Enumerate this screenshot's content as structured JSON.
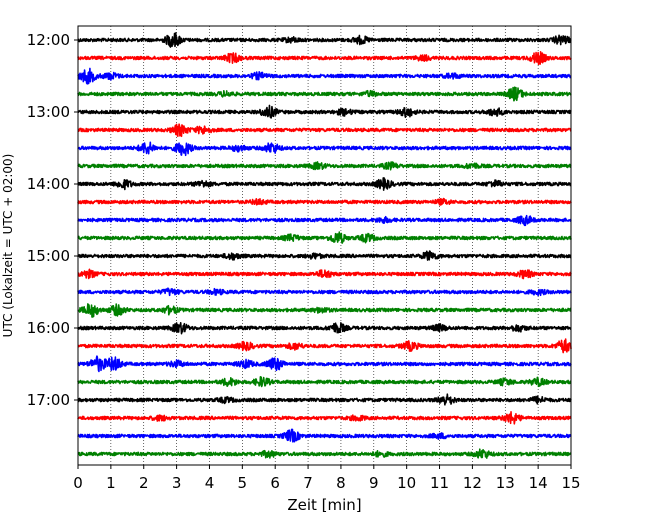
{
  "chart_data": {
    "type": "line",
    "title": "",
    "xlabel": "Zeit  [min]",
    "ylabel": "UTC (Lokalzeit = UTC + 02:00)",
    "xlim": [
      0,
      15
    ],
    "x_ticks": [
      "0",
      "1",
      "2",
      "3",
      "4",
      "5",
      "6",
      "7",
      "8",
      "9",
      "10",
      "11",
      "12",
      "13",
      "14",
      "15"
    ],
    "y_tick_labels": [
      {
        "row": 0,
        "label": "12:00"
      },
      {
        "row": 4,
        "label": "13:00"
      },
      {
        "row": 8,
        "label": "14:00"
      },
      {
        "row": 12,
        "label": "15:00"
      },
      {
        "row": 16,
        "label": "16:00"
      },
      {
        "row": 20,
        "label": "17:00"
      }
    ],
    "grid": "vertical dotted",
    "trace_colors": [
      "#000000",
      "#ff0000",
      "#0000ff",
      "#008000"
    ],
    "traces": [
      {
        "start": "12:00",
        "color": "#000000",
        "events": [
          [
            2.9,
            1.0
          ],
          [
            8.6,
            0.5
          ],
          [
            14.7,
            0.6
          ],
          [
            6.5,
            0.3
          ]
        ]
      },
      {
        "start": "12:15",
        "color": "#ff0000",
        "events": [
          [
            4.7,
            0.6
          ],
          [
            14.0,
            0.8
          ],
          [
            10.5,
            0.3
          ]
        ]
      },
      {
        "start": "12:30",
        "color": "#0000ff",
        "events": [
          [
            0.3,
            1.0
          ],
          [
            1.0,
            0.4
          ],
          [
            5.5,
            0.4
          ],
          [
            11.4,
            0.3
          ]
        ]
      },
      {
        "start": "12:45",
        "color": "#008000",
        "events": [
          [
            13.3,
            0.9
          ],
          [
            4.5,
            0.3
          ],
          [
            8.9,
            0.3
          ]
        ]
      },
      {
        "start": "13:00",
        "color": "#000000",
        "events": [
          [
            5.8,
            0.8
          ],
          [
            10.0,
            0.6
          ],
          [
            12.7,
            0.5
          ],
          [
            8.1,
            0.4
          ]
        ]
      },
      {
        "start": "13:15",
        "color": "#ff0000",
        "events": [
          [
            3.1,
            0.8
          ],
          [
            3.8,
            0.5
          ]
        ]
      },
      {
        "start": "13:30",
        "color": "#0000ff",
        "events": [
          [
            2.1,
            0.8
          ],
          [
            3.2,
            1.0
          ],
          [
            5.9,
            0.7
          ],
          [
            4.9,
            0.4
          ]
        ]
      },
      {
        "start": "13:45",
        "color": "#008000",
        "events": [
          [
            7.3,
            0.4
          ],
          [
            9.5,
            0.4
          ],
          [
            12.0,
            0.3
          ]
        ]
      },
      {
        "start": "14:00",
        "color": "#000000",
        "events": [
          [
            1.4,
            0.6
          ],
          [
            3.8,
            0.4
          ],
          [
            9.3,
            0.7
          ],
          [
            12.7,
            0.4
          ]
        ]
      },
      {
        "start": "14:15",
        "color": "#ff0000",
        "events": [
          [
            5.5,
            0.3
          ],
          [
            11.1,
            0.3
          ]
        ]
      },
      {
        "start": "14:30",
        "color": "#0000ff",
        "events": [
          [
            13.6,
            0.6
          ],
          [
            9.3,
            0.3
          ]
        ]
      },
      {
        "start": "14:45",
        "color": "#008000",
        "events": [
          [
            7.9,
            0.8
          ],
          [
            6.5,
            0.4
          ],
          [
            8.8,
            0.5
          ]
        ]
      },
      {
        "start": "15:00",
        "color": "#000000",
        "events": [
          [
            10.7,
            0.6
          ],
          [
            4.7,
            0.4
          ],
          [
            7.2,
            0.3
          ]
        ]
      },
      {
        "start": "15:15",
        "color": "#ff0000",
        "events": [
          [
            0.3,
            0.5
          ],
          [
            7.5,
            0.5
          ],
          [
            13.6,
            0.5
          ]
        ]
      },
      {
        "start": "15:30",
        "color": "#0000ff",
        "events": [
          [
            2.8,
            0.4
          ],
          [
            4.2,
            0.3
          ],
          [
            14.0,
            0.3
          ]
        ]
      },
      {
        "start": "15:45",
        "color": "#008000",
        "events": [
          [
            0.4,
            0.9
          ],
          [
            1.2,
            0.7
          ],
          [
            2.8,
            0.5
          ],
          [
            7.4,
            0.3
          ]
        ]
      },
      {
        "start": "16:00",
        "color": "#000000",
        "events": [
          [
            3.1,
            0.7
          ],
          [
            7.9,
            0.7
          ],
          [
            11.0,
            0.4
          ],
          [
            13.4,
            0.4
          ]
        ]
      },
      {
        "start": "16:15",
        "color": "#ff0000",
        "events": [
          [
            5.1,
            0.5
          ],
          [
            10.1,
            0.6
          ],
          [
            14.8,
            0.9
          ],
          [
            6.6,
            0.4
          ]
        ]
      },
      {
        "start": "16:30",
        "color": "#0000ff",
        "events": [
          [
            0.6,
            1.0
          ],
          [
            1.1,
            0.9
          ],
          [
            6.0,
            0.9
          ],
          [
            5.1,
            0.5
          ],
          [
            3.0,
            0.4
          ]
        ]
      },
      {
        "start": "16:45",
        "color": "#008000",
        "events": [
          [
            4.6,
            0.5
          ],
          [
            5.6,
            0.6
          ],
          [
            13.0,
            0.4
          ],
          [
            14.0,
            0.5
          ]
        ]
      },
      {
        "start": "17:00",
        "color": "#000000",
        "events": [
          [
            11.2,
            0.7
          ],
          [
            14.0,
            0.4
          ],
          [
            4.5,
            0.3
          ]
        ]
      },
      {
        "start": "17:15",
        "color": "#ff0000",
        "events": [
          [
            13.2,
            0.8
          ],
          [
            2.5,
            0.3
          ],
          [
            8.5,
            0.3
          ]
        ]
      },
      {
        "start": "17:30",
        "color": "#0000ff",
        "events": [
          [
            6.5,
            0.8
          ],
          [
            11.0,
            0.3
          ]
        ]
      },
      {
        "start": "17:45",
        "color": "#008000",
        "events": [
          [
            12.3,
            0.6
          ],
          [
            5.8,
            0.4
          ],
          [
            9.2,
            0.3
          ]
        ]
      }
    ]
  }
}
